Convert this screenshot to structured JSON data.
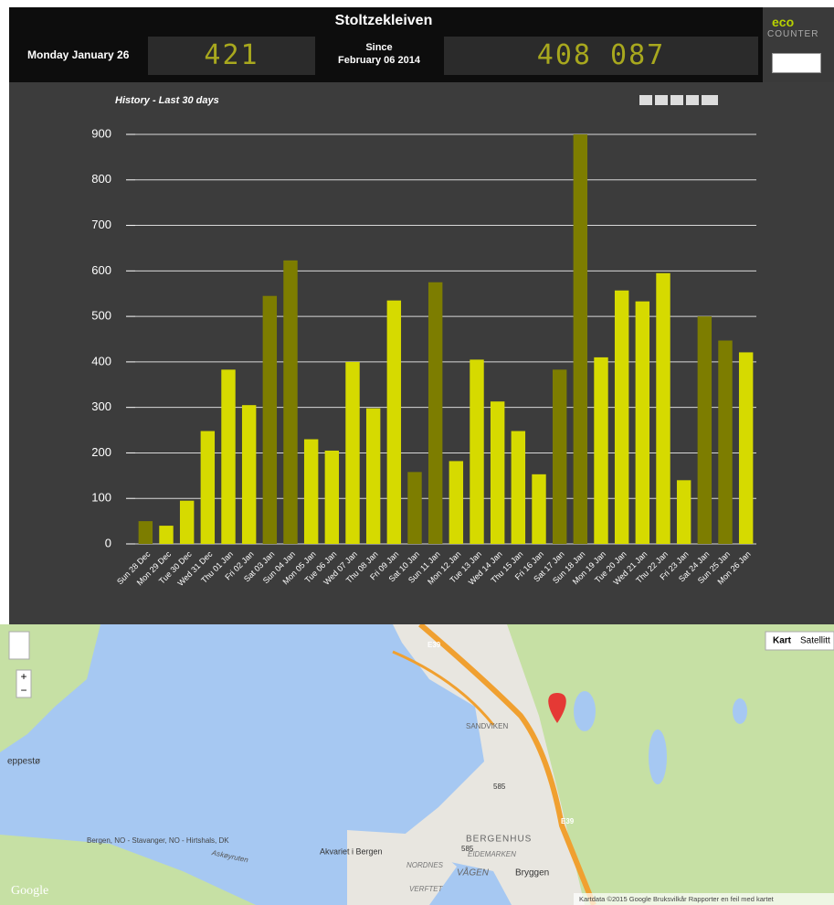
{
  "header": {
    "title": "Stoltzekleiven",
    "date": "Monday January 26",
    "today_count": "421",
    "since_label": "Since",
    "since_date": "February 06 2014",
    "total_count": "408 087",
    "logo_top": "eco",
    "logo_bottom": "COUNTER"
  },
  "chart_data": {
    "type": "bar",
    "title": "History  -  Last 30 days",
    "categories": [
      "Sun 28 Dec",
      "Mon 29 Dec",
      "Tue 30 Dec",
      "Wed 31 Dec",
      "Thu 01 Jan",
      "Fri 02 Jan",
      "Sat 03 Jan",
      "Sun 04 Jan",
      "Mon 05 Jan",
      "Tue 06 Jan",
      "Wed 07 Jan",
      "Thu 08 Jan",
      "Fri 09 Jan",
      "Sat 10 Jan",
      "Sun 11 Jan",
      "Mon 12 Jan",
      "Tue 13 Jan",
      "Wed 14 Jan",
      "Thu 15 Jan",
      "Fri 16 Jan",
      "Sat 17 Jan",
      "Sun 18 Jan",
      "Mon 19 Jan",
      "Tue 20 Jan",
      "Wed 21 Jan",
      "Thu 22 Jan",
      "Fri 23 Jan",
      "Sat 24 Jan",
      "Sun 25 Jan",
      "Mon 26 Jan"
    ],
    "values": [
      50,
      40,
      95,
      248,
      383,
      305,
      545,
      623,
      230,
      205,
      400,
      298,
      535,
      158,
      575,
      182,
      405,
      313,
      248,
      153,
      383,
      900,
      410,
      557,
      533,
      595,
      140,
      500,
      447,
      421
    ],
    "colors": [
      "#7d7d00",
      "#d6da00",
      "#d6da00",
      "#d6da00",
      "#d6da00",
      "#d6da00",
      "#7d7d00",
      "#7d7d00",
      "#d6da00",
      "#d6da00",
      "#d6da00",
      "#d6da00",
      "#d6da00",
      "#7d7d00",
      "#7d7d00",
      "#d6da00",
      "#d6da00",
      "#d6da00",
      "#d6da00",
      "#d6da00",
      "#7d7d00",
      "#7d7d00",
      "#d6da00",
      "#d6da00",
      "#d6da00",
      "#d6da00",
      "#d6da00",
      "#7d7d00",
      "#7d7d00",
      "#d6da00"
    ],
    "ylim": [
      0,
      900
    ],
    "yticks": [
      0,
      100,
      200,
      300,
      400,
      500,
      600,
      700,
      800,
      900
    ],
    "grid": true
  },
  "map": {
    "map_type": [
      "Kart",
      "Satellitt"
    ],
    "zoom": [
      "+",
      "−"
    ],
    "places": [
      "SANDVIKEN",
      "BERGENHUS",
      "EIDEMARKEN",
      "VÅGEN",
      "Bryggen",
      "Akvariet i Bergen",
      "NORDNES",
      "VERFTET",
      "Bergen, NO - Stavanger, NO - Hirtshals, DK",
      "Askøyruten",
      "eppestø"
    ],
    "roads": [
      "E39",
      "E39",
      "585",
      "585"
    ],
    "logo": "Google",
    "attribution": "Kartdata ©2015 Google   Bruksvilkår   Rapporter en feil med kartet"
  }
}
